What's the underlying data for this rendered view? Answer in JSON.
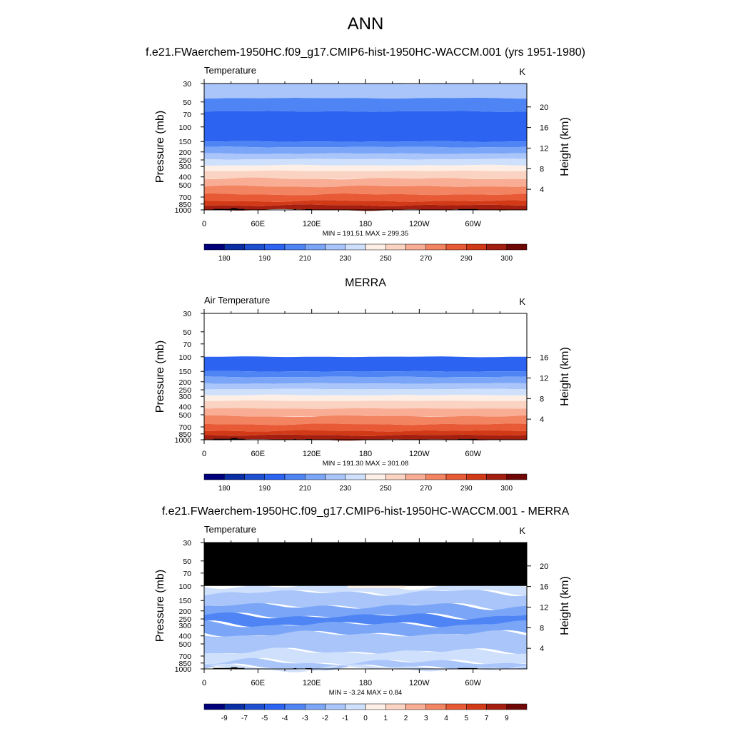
{
  "page_title": "ANN",
  "colors": {
    "temp_palette": [
      "#00007a",
      "#0a2ea3",
      "#1f4fd1",
      "#2c63f0",
      "#4e84f4",
      "#7ba6f7",
      "#a9c5fa",
      "#cfe0fc",
      "#fdefe6",
      "#fbd3c2",
      "#f8ad94",
      "#f38462",
      "#e85a36",
      "#d23a17",
      "#a51f10",
      "#700707"
    ],
    "diff_palette": [
      "#00007a",
      "#0a2ea3",
      "#1f4fd1",
      "#2c63f0",
      "#4e84f4",
      "#7ba6f7",
      "#a9c5fa",
      "#cfe0fc",
      "#fdefe6",
      "#fbd3c2",
      "#f8ad94",
      "#f38462",
      "#e85a36",
      "#d23a17",
      "#a51f10",
      "#700707"
    ],
    "terrain": "#000000",
    "missing": "#000000"
  },
  "chart_data": [
    {
      "type": "contour",
      "title": "f.e21.FWaerchem-1950HC.f09_g17.CMIP6-hist-1950HC-WACCM.001 (yrs 1951-1980)",
      "left_label": "Temperature",
      "units": "K",
      "xlabel": "",
      "ylabel": "Pressure (mb)",
      "ylabel_right": "Height (km)",
      "x_ticks": [
        "0",
        "60E",
        "120E",
        "180",
        "120W",
        "60W"
      ],
      "y_ticks": [
        "30",
        "50",
        "70",
        "100",
        "150",
        "200",
        "250",
        "300",
        "400",
        "500",
        "700",
        "850",
        "1000"
      ],
      "y_ticks_right": [
        "20",
        "16",
        "12",
        "8",
        "4"
      ],
      "ylim": [
        1000,
        30
      ],
      "stats": "MIN = 191.51  MAX = 299.35",
      "colorbar_labels": [
        "180",
        "190",
        "210",
        "230",
        "250",
        "270",
        "290",
        "300"
      ],
      "levels": [
        180,
        185,
        190,
        200,
        210,
        220,
        230,
        240,
        250,
        260,
        270,
        280,
        290,
        295,
        300
      ],
      "min": 191.51,
      "max": 299.35
    },
    {
      "type": "contour",
      "title": "MERRA",
      "left_label": "Air Temperature",
      "units": "K",
      "xlabel": "",
      "ylabel": "Pressure (mb)",
      "ylabel_right": "Height (km)",
      "x_ticks": [
        "0",
        "60E",
        "120E",
        "180",
        "120W",
        "60W"
      ],
      "y_ticks": [
        "30",
        "50",
        "70",
        "100",
        "150",
        "200",
        "250",
        "300",
        "400",
        "500",
        "700",
        "850",
        "1000"
      ],
      "y_ticks_right": [
        "16",
        "12",
        "8",
        "4"
      ],
      "ylim": [
        1000,
        30
      ],
      "stats": "MIN = 191.30  MAX = 301.08",
      "colorbar_labels": [
        "180",
        "190",
        "210",
        "230",
        "250",
        "270",
        "290",
        "300"
      ],
      "levels": [
        180,
        185,
        190,
        200,
        210,
        220,
        230,
        240,
        250,
        260,
        270,
        280,
        290,
        295,
        300
      ],
      "min": 191.3,
      "max": 301.08
    },
    {
      "type": "contour",
      "title": "f.e21.FWaerchem-1950HC.f09_g17.CMIP6-hist-1950HC-WACCM.001 - MERRA",
      "left_label": "Temperature",
      "units": "K",
      "xlabel": "",
      "ylabel": "Pressure (mb)",
      "ylabel_right": "Height (km)",
      "x_ticks": [
        "0",
        "60E",
        "120E",
        "180",
        "120W",
        "60W"
      ],
      "y_ticks": [
        "30",
        "50",
        "70",
        "100",
        "150",
        "200",
        "250",
        "300",
        "400",
        "500",
        "700",
        "850",
        "1000"
      ],
      "y_ticks_right": [
        "20",
        "16",
        "12",
        "8",
        "4"
      ],
      "ylim": [
        1000,
        30
      ],
      "stats": "MIN =  -3.24  MAX =   0.84",
      "colorbar_labels": [
        "-9",
        "-7",
        "-5",
        "-4",
        "-3",
        "-2",
        "-1",
        "0",
        "1",
        "2",
        "3",
        "4",
        "5",
        "7",
        "9"
      ],
      "levels": [
        -11,
        -9,
        -7,
        -5,
        -4,
        -3,
        -2,
        -1,
        0,
        1,
        2,
        3,
        4,
        5,
        7,
        9,
        11
      ],
      "min": -3.24,
      "max": 0.84
    }
  ]
}
